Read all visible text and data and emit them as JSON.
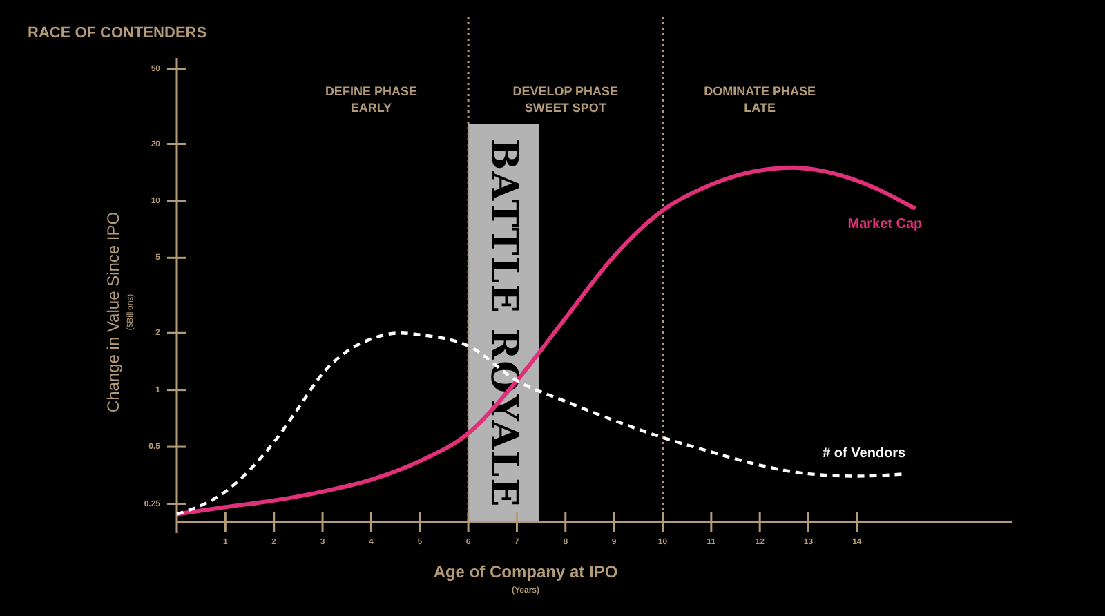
{
  "chart_data": {
    "type": "line",
    "title": "RACE OF CONTENDERS",
    "xlabel": "Age of Company at IPO\n(Years)",
    "ylabel": "Change in Value Since IPO\n($Billions)",
    "log": "y",
    "grid": false,
    "xlim": [
      0,
      17.2
    ],
    "xticks": [
      1,
      2,
      3,
      4,
      5,
      6,
      7,
      8,
      9,
      10,
      11,
      12,
      13,
      14
    ],
    "ylim": [
      0.2,
      57
    ],
    "yticks": [
      0.25,
      0.5,
      1,
      2,
      5,
      10,
      20,
      50
    ],
    "series": [
      {
        "name": "Market Cap",
        "color": "#e0307a",
        "line_style": "solid",
        "x": [
          0,
          1,
          2,
          3,
          4,
          5,
          6,
          7,
          8,
          9,
          10,
          11,
          12,
          12.7,
          13,
          14,
          15.2
        ],
        "values": [
          0.22,
          0.24,
          0.26,
          0.29,
          0.335,
          0.42,
          0.59,
          1.12,
          2.4,
          5.1,
          8.9,
          12.2,
          14.5,
          15,
          14.8,
          12.8,
          9.1
        ]
      },
      {
        "name": "# of Vendors",
        "color": "#ffffff",
        "line_style": "dashed",
        "x": [
          0,
          1,
          2,
          2.5,
          3,
          3.5,
          4,
          4.6,
          5,
          6,
          7,
          8,
          9,
          10,
          11,
          12,
          13,
          14,
          15
        ],
        "values": [
          0.22,
          0.29,
          0.53,
          0.8,
          1.22,
          1.6,
          1.86,
          2.0,
          1.96,
          1.71,
          1.12,
          0.87,
          0.69,
          0.56,
          0.47,
          0.4,
          0.36,
          0.35,
          0.36
        ]
      }
    ],
    "ref_lines": [
      {
        "axis": "x",
        "value": 6,
        "color": "#b49b78",
        "line_style": "dotted"
      },
      {
        "axis": "x",
        "value": 10,
        "color": "#b49b78",
        "line_style": "dotted"
      }
    ],
    "bands": [
      {
        "axis": "x",
        "from": 6,
        "to": 7.45,
        "label": "BATTLE ROYALE",
        "color": "#b3b3b3"
      }
    ],
    "annotations": [
      "DEFINE PHASE\nEARLY",
      "DEVELOP PHASE\nSWEET SPOT",
      "DOMINATE PHASE\nLATE"
    ]
  }
}
